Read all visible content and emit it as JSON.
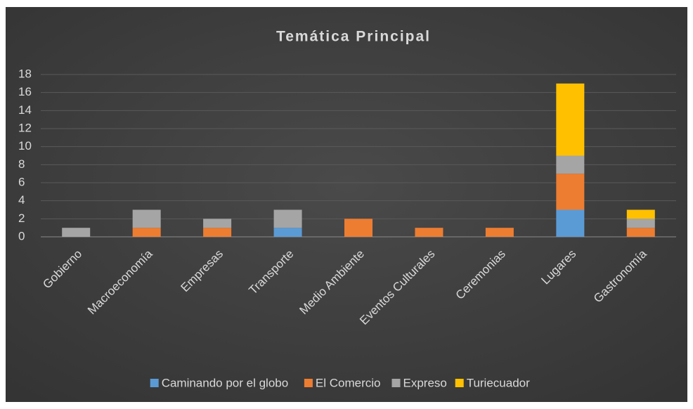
{
  "chart_data": {
    "type": "stacked_bar",
    "title": "Temática Principal",
    "categories": [
      "Gobierno",
      "Macroeconomía",
      "Empresas",
      "Transporte",
      "Medio Ambiente",
      "Eventos Culturales",
      "Ceremonias",
      "Lugares",
      "Gastronomía"
    ],
    "series": [
      {
        "name": "Caminando por el globo",
        "color": "#5b9bd5",
        "values": [
          0,
          0,
          0,
          1,
          0,
          0,
          0,
          3,
          0
        ]
      },
      {
        "name": "El Comercio",
        "color": "#ed7d31",
        "values": [
          0,
          1,
          1,
          0,
          2,
          1,
          1,
          4,
          1
        ]
      },
      {
        "name": "Expreso",
        "color": "#a5a5a5",
        "values": [
          1,
          2,
          1,
          2,
          0,
          0,
          0,
          2,
          1
        ]
      },
      {
        "name": "Turiecuador",
        "color": "#ffc000",
        "values": [
          0,
          0,
          0,
          0,
          0,
          0,
          0,
          8,
          1
        ]
      }
    ],
    "ylim": [
      0,
      18
    ],
    "yticks": [
      0,
      2,
      4,
      6,
      8,
      10,
      12,
      14,
      16,
      18
    ],
    "grid": true,
    "legend": "bottom"
  }
}
